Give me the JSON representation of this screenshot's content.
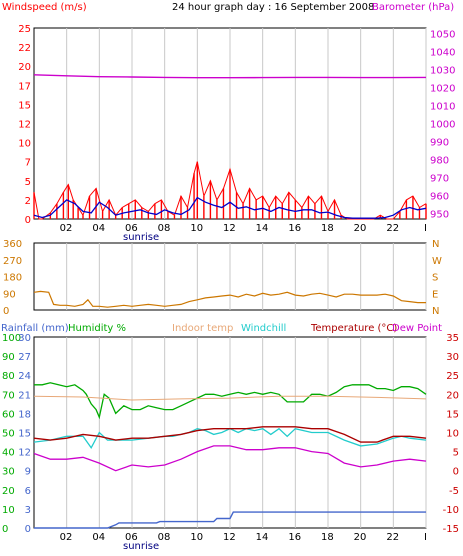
{
  "header": {
    "left_label": "Windspeed (m/s)",
    "center_label": "24 hour graph day : 16 September 2008",
    "right_label": "Barometer (hPa)"
  },
  "bottom_header": {
    "rainfall": "Rainfall (mm)",
    "humidity": "Humidity %",
    "indoor": "Indoor temp",
    "windchill": "Windchill",
    "temperature": "Temperature (°C)",
    "dewpoint": "Dew Point"
  },
  "sunrise_label": "sunrise",
  "colors": {
    "wind": "#ff0000",
    "wind_avg": "#0000cc",
    "barometer": "#cc00cc",
    "direction": "#cc7700",
    "rain": "#4466cc",
    "humidity": "#00aa00",
    "indoor": "#e8a878",
    "windchill": "#22cccc",
    "temperature": "#aa0000",
    "dewpoint": "#cc00cc",
    "left_axis": "#ff0000",
    "right_axis": "#cc00cc"
  },
  "chart_data": [
    {
      "type": "line",
      "name": "wind-barometer",
      "x_ticks": [
        "02",
        "04",
        "06",
        "08",
        "10",
        "12",
        "14",
        "16",
        "18",
        "20",
        "22",
        "I"
      ],
      "y_left_ticks": [
        "0",
        "2.5",
        "5",
        "7.5",
        "10",
        "12.5",
        "15",
        "17.5",
        "20",
        "22.5",
        "25"
      ],
      "y_left_tick_values": [
        0,
        2.5,
        5,
        7.5,
        10,
        12.5,
        15,
        17.5,
        20,
        22.5,
        25
      ],
      "y_left_labels": [
        "0",
        "2",
        "5",
        "7",
        "10",
        "12",
        "15",
        "17",
        "20",
        "22",
        "25"
      ],
      "ylim_left": [
        0,
        25
      ],
      "y_right_ticks": [
        "950",
        "960",
        "970",
        "980",
        "990",
        "1000",
        "1010",
        "1020",
        "1030",
        "1040",
        "1050"
      ],
      "ylim_right": [
        947,
        1053
      ],
      "series": [
        {
          "label": "gust",
          "axis": "left",
          "x": [
            0,
            0.3,
            0.5,
            1,
            1.4,
            1.8,
            2.1,
            2.4,
            2.7,
            3,
            3.4,
            3.8,
            4.2,
            4.6,
            5,
            5.4,
            5.8,
            6.2,
            6.6,
            7,
            7.4,
            7.8,
            8.2,
            8.6,
            9,
            9.4,
            9.8,
            10,
            10.4,
            10.8,
            11.2,
            11.6,
            12,
            12.4,
            12.8,
            13.2,
            13.6,
            14,
            14.4,
            14.8,
            15.2,
            15.6,
            16,
            16.4,
            16.8,
            17.2,
            17.6,
            18,
            18.4,
            18.8,
            19.2,
            19.6,
            20,
            20.4,
            20.8,
            21.2,
            21.6,
            22,
            22.4,
            22.8,
            23.2,
            23.6,
            24
          ],
          "y": [
            3.5,
            0,
            0,
            0.8,
            2,
            3.5,
            4.5,
            2.5,
            1.5,
            0.5,
            3,
            4,
            1,
            2.5,
            0.5,
            1.5,
            2,
            2.5,
            1.5,
            1,
            2,
            2.5,
            1,
            0.5,
            3,
            1.5,
            6,
            7.5,
            3,
            5,
            2.5,
            4,
            6.5,
            3.5,
            2,
            4,
            2.5,
            3,
            1.5,
            3,
            2,
            3.5,
            2.5,
            1.5,
            3,
            2,
            3,
            1,
            2.5,
            0.5,
            0,
            0,
            0,
            0,
            0,
            0.5,
            0,
            0,
            1,
            2.5,
            3,
            1.5,
            2
          ]
        },
        {
          "label": "average",
          "axis": "left",
          "x": [
            0,
            0.5,
            1,
            1.5,
            2,
            2.5,
            3,
            3.5,
            4,
            4.5,
            5,
            5.5,
            6,
            6.5,
            7,
            7.5,
            8,
            8.5,
            9,
            9.5,
            10,
            10.5,
            11,
            11.5,
            12,
            12.5,
            13,
            13.5,
            14,
            14.5,
            15,
            15.5,
            16,
            16.5,
            17,
            17.5,
            18,
            18.5,
            19,
            19.5,
            20,
            20.5,
            21,
            21.5,
            22,
            22.5,
            23,
            23.5,
            24
          ],
          "y": [
            0.5,
            0.2,
            0.5,
            1.5,
            2.5,
            2,
            1,
            0.8,
            2.2,
            1.5,
            0.5,
            0.8,
            1,
            1.2,
            0.8,
            0.6,
            1.2,
            0.8,
            0.6,
            1.2,
            2.8,
            2.2,
            1.8,
            1.5,
            2.2,
            1.4,
            1.6,
            1.2,
            1.4,
            1,
            1.5,
            1.2,
            1,
            1.2,
            1.2,
            0.8,
            0.9,
            0.5,
            0.2,
            0.1,
            0.1,
            0.1,
            0.1,
            0.2,
            0.5,
            1.2,
            1.5,
            1.2,
            1.4
          ]
        },
        {
          "label": "barometer",
          "axis": "right",
          "x": [
            0,
            2,
            4,
            6,
            8,
            10,
            12,
            14,
            16,
            18,
            20,
            22,
            24
          ],
          "y": [
            1027,
            1026.5,
            1026,
            1025.8,
            1025.6,
            1025.4,
            1025.4,
            1025.5,
            1025.6,
            1025.6,
            1025.5,
            1025.5,
            1025.6
          ]
        }
      ]
    },
    {
      "type": "line",
      "name": "wind-direction",
      "x_ticks": [],
      "y_left_ticks": [
        "0",
        "90",
        "180",
        "270",
        "360"
      ],
      "ylim_left": [
        0,
        360
      ],
      "y_right_ticks": [
        "N",
        "E",
        "S",
        "W",
        "N"
      ],
      "series": [
        {
          "label": "direction",
          "x": [
            0,
            0.4,
            0.9,
            1.2,
            1.6,
            2,
            2.5,
            3,
            3.3,
            3.6,
            4,
            4.5,
            5,
            5.5,
            6,
            6.5,
            7,
            7.5,
            8,
            8.5,
            9,
            9.5,
            10,
            10.5,
            11,
            11.5,
            12,
            12.5,
            13,
            13.5,
            14,
            14.5,
            15,
            15.5,
            16,
            16.5,
            17,
            17.5,
            18,
            18.5,
            19,
            19.5,
            20,
            20.5,
            21,
            21.5,
            22,
            22.5,
            23,
            23.5,
            24
          ],
          "y": [
            95,
            100,
            95,
            30,
            25,
            25,
            20,
            30,
            55,
            20,
            20,
            15,
            20,
            25,
            20,
            25,
            30,
            25,
            20,
            25,
            30,
            45,
            55,
            65,
            70,
            75,
            80,
            70,
            85,
            75,
            90,
            80,
            85,
            95,
            80,
            75,
            85,
            90,
            80,
            70,
            85,
            85,
            80,
            80,
            80,
            85,
            75,
            50,
            45,
            40,
            40
          ]
        }
      ]
    },
    {
      "type": "line",
      "name": "temperature-humidity-rain",
      "x_ticks": [
        "02",
        "04",
        "06",
        "08",
        "10",
        "12",
        "14",
        "16",
        "18",
        "20",
        "22",
        "I"
      ],
      "y_rain_ticks": [
        "0",
        "3",
        "6",
        "9",
        "12",
        "15",
        "18",
        "21",
        "24",
        "27",
        "30"
      ],
      "ylim_rain": [
        0,
        30
      ],
      "y_humidity_ticks": [
        "0",
        "10",
        "20",
        "30",
        "40",
        "50",
        "60",
        "70",
        "80",
        "90",
        "100"
      ],
      "ylim_humidity": [
        0,
        100
      ],
      "y_temp_ticks": [
        "-15",
        "-10",
        "-5",
        "0",
        "5",
        "10",
        "15",
        "20",
        "25",
        "30",
        "35"
      ],
      "ylim_temp": [
        -15,
        35
      ],
      "series": [
        {
          "label": "rainfall",
          "axis": "rain",
          "x": [
            0,
            4.5,
            5,
            5.2,
            7.5,
            7.7,
            11,
            11.2,
            12,
            12.2,
            24
          ],
          "y": [
            0,
            0,
            0.5,
            0.8,
            0.8,
            1,
            1,
            1.5,
            1.5,
            2.5,
            2.5
          ]
        },
        {
          "label": "humidity",
          "axis": "humidity",
          "x": [
            0,
            0.5,
            1,
            1.5,
            2,
            2.5,
            3,
            3.2,
            3.5,
            3.8,
            4,
            4.3,
            4.6,
            5,
            5.5,
            6,
            6.5,
            7,
            7.5,
            8,
            8.5,
            9,
            9.5,
            10,
            10.5,
            11,
            11.5,
            12,
            12.5,
            13,
            13.5,
            14,
            14.5,
            15,
            15.5,
            16,
            16.5,
            17,
            17.5,
            18,
            18.5,
            19,
            19.5,
            20,
            20.5,
            21,
            21.5,
            22,
            22.5,
            23,
            23.5,
            24
          ],
          "y": [
            75,
            75,
            76,
            75,
            74,
            75,
            72,
            70,
            65,
            62,
            58,
            70,
            68,
            60,
            64,
            62,
            62,
            64,
            63,
            62,
            62,
            64,
            66,
            68,
            70,
            70,
            69,
            70,
            71,
            70,
            71,
            70,
            71,
            70,
            66,
            66,
            66,
            70,
            70,
            69,
            71,
            74,
            75,
            75,
            75,
            73,
            73,
            72,
            74,
            74,
            73,
            70
          ]
        },
        {
          "label": "indoor",
          "axis": "temp",
          "x": [
            0,
            3,
            6,
            9,
            12,
            15,
            18,
            21,
            24
          ],
          "y": [
            19.5,
            19.3,
            18.5,
            18.8,
            19,
            19.5,
            19.5,
            19.2,
            18.8
          ]
        },
        {
          "label": "windchill",
          "axis": "temp",
          "x": [
            0,
            1,
            2,
            3,
            3.5,
            4,
            4.5,
            5,
            6,
            7,
            8,
            8.5,
            9,
            9.5,
            10,
            10.5,
            11,
            11.5,
            12,
            12.5,
            13,
            13.5,
            14,
            14.5,
            15,
            15.5,
            16,
            17,
            18,
            19,
            20,
            21,
            22,
            22.5,
            23,
            24
          ],
          "y": [
            7.5,
            8,
            9,
            9,
            6,
            10,
            8,
            8,
            8,
            8.5,
            9,
            9,
            9.5,
            10,
            11,
            10.5,
            9.5,
            10,
            11,
            10,
            11,
            10.5,
            11,
            9.5,
            11,
            9,
            11,
            10,
            10,
            8,
            6.5,
            7,
            8.5,
            9,
            8.5,
            8
          ]
        },
        {
          "label": "temperature",
          "axis": "temp",
          "x": [
            0,
            1,
            2,
            3,
            4,
            5,
            6,
            7,
            8,
            9,
            10,
            11,
            12,
            13,
            14,
            15,
            16,
            17,
            18,
            19,
            20,
            21,
            22,
            23,
            24
          ],
          "y": [
            8.5,
            8,
            8.5,
            9.5,
            9,
            8,
            8.5,
            8.5,
            9,
            9.5,
            10.5,
            11,
            11,
            11,
            11.5,
            11.5,
            11.5,
            11,
            11,
            9.5,
            7.5,
            7.5,
            9,
            9,
            8.5
          ]
        },
        {
          "label": "dewpoint",
          "axis": "temp",
          "x": [
            0,
            1,
            2,
            3,
            4,
            5,
            6,
            7,
            8,
            9,
            10,
            11,
            12,
            13,
            14,
            15,
            16,
            17,
            18,
            19,
            20,
            21,
            22,
            23,
            24
          ],
          "y": [
            4.5,
            3,
            3,
            3.5,
            2,
            0,
            1.5,
            1,
            1.5,
            3,
            5,
            6.5,
            6.5,
            5.5,
            5.5,
            6,
            6,
            5,
            4.5,
            2,
            1,
            1.5,
            2.5,
            3,
            2.5
          ]
        }
      ]
    }
  ]
}
